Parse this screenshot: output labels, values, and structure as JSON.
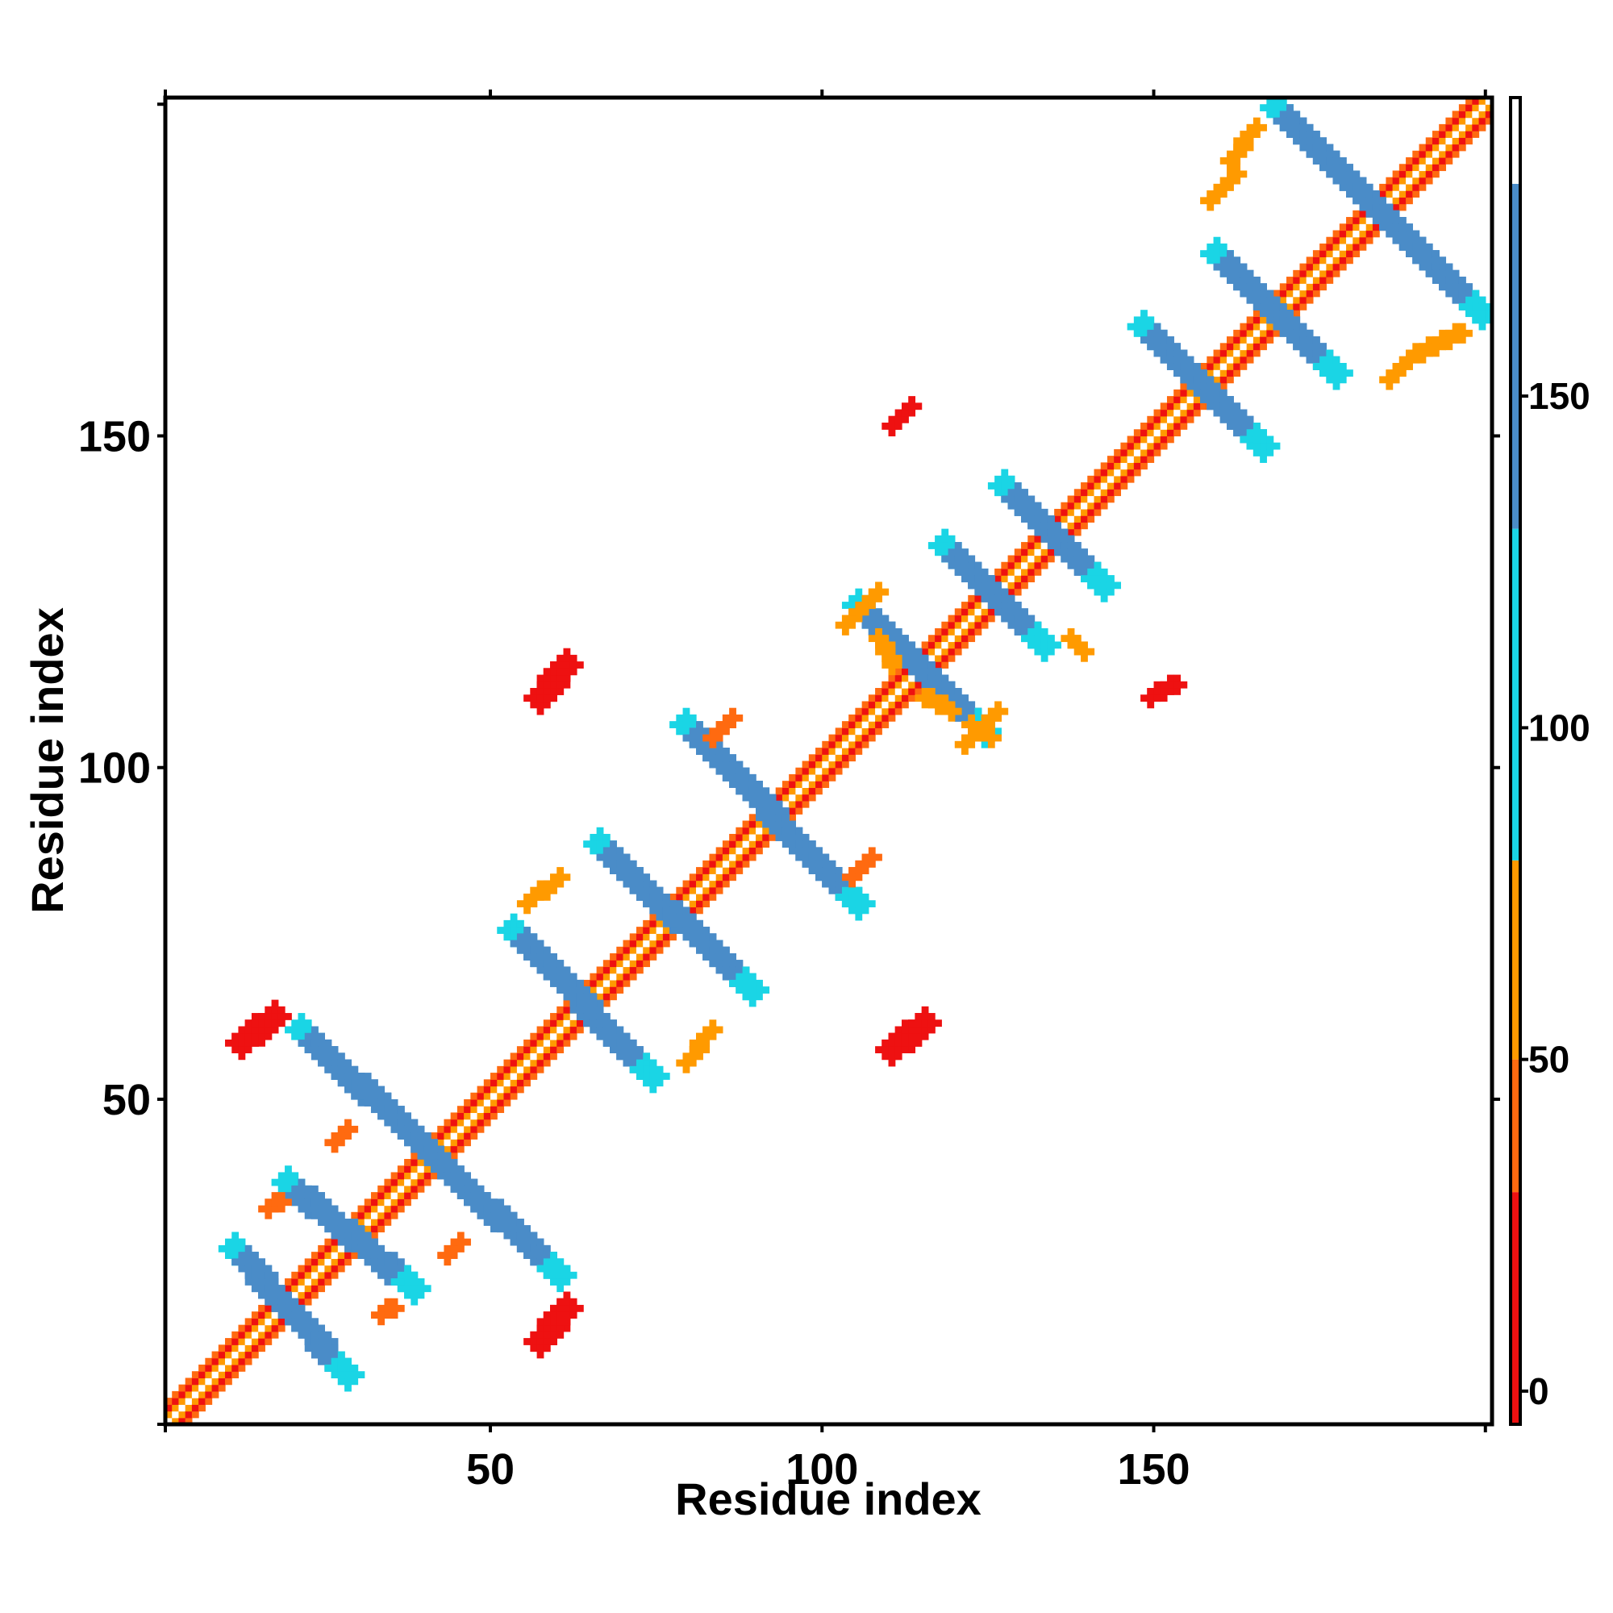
{
  "chart_data": {
    "type": "heatmap",
    "title": "",
    "xlabel": "Residue index",
    "ylabel": "Residue index",
    "xlim": [
      1,
      201
    ],
    "ylim": [
      1,
      201
    ],
    "x_ticks": [
      50,
      100,
      150
    ],
    "y_ticks": [
      50,
      100,
      150
    ],
    "grid": false,
    "colorbar": {
      "placement": "right",
      "range": [
        -5,
        195
      ],
      "ticks": [
        0,
        50,
        100,
        150
      ],
      "bands": [
        {
          "from": -5,
          "to": 30,
          "color": "#ee1111"
        },
        {
          "from": 30,
          "to": 50,
          "color": "#ff6a10"
        },
        {
          "from": 50,
          "to": 80,
          "color": "#ff9a00"
        },
        {
          "from": 80,
          "to": 130,
          "color": "#1ad5e5"
        },
        {
          "from": 130,
          "to": 182,
          "color": "#4a8cc8"
        },
        {
          "from": 182,
          "to": 195,
          "color": "#ffffff"
        }
      ]
    },
    "diagonal": {
      "from": 1,
      "to": 201
    },
    "features": [
      {
        "kind": "strand_pair",
        "from": [
          11,
          27
        ],
        "to": [
          28,
          8
        ],
        "width": 2.2,
        "color": "#4a8cc8"
      },
      {
        "kind": "strand_pair",
        "from": [
          19,
          37
        ],
        "to": [
          38,
          21
        ],
        "width": 2.2,
        "color": "#4a8cc8"
      },
      {
        "kind": "strand_pair",
        "from": [
          21,
          60
        ],
        "to": [
          60,
          23
        ],
        "width": 2.2,
        "color": "#4a8cc8"
      },
      {
        "kind": "strand_pair",
        "from": [
          53,
          75
        ],
        "to": [
          74,
          53
        ],
        "width": 2.2,
        "color": "#4a8cc8"
      },
      {
        "kind": "strand_pair",
        "from": [
          66,
          88
        ],
        "to": [
          89,
          66
        ],
        "width": 2.2,
        "color": "#4a8cc8"
      },
      {
        "kind": "strand_pair",
        "from": [
          79,
          106
        ],
        "to": [
          105,
          79
        ],
        "width": 2.2,
        "color": "#4a8cc8"
      },
      {
        "kind": "strand_pair",
        "from": [
          105,
          124
        ],
        "to": [
          124,
          105
        ],
        "width": 2.2,
        "color": "#4a8cc8"
      },
      {
        "kind": "strand_pair",
        "from": [
          118,
          133
        ],
        "to": [
          133,
          118
        ],
        "width": 2.2,
        "color": "#4a8cc8"
      },
      {
        "kind": "strand_pair",
        "from": [
          127,
          142
        ],
        "to": [
          142,
          127
        ],
        "width": 2.2,
        "color": "#4a8cc8"
      },
      {
        "kind": "strand_pair",
        "from": [
          148,
          166
        ],
        "to": [
          166,
          148
        ],
        "width": 2.2,
        "color": "#4a8cc8"
      },
      {
        "kind": "strand_pair",
        "from": [
          159,
          177
        ],
        "to": [
          177,
          159
        ],
        "width": 2.2,
        "color": "#4a8cc8"
      },
      {
        "kind": "strand_pair",
        "from": [
          168,
          199
        ],
        "to": [
          199,
          168
        ],
        "width": 2.2,
        "color": "#4a8cc8"
      },
      {
        "kind": "blob",
        "from": [
          12,
          58
        ],
        "to": [
          17,
          62
        ],
        "width": 1.8,
        "color": "#ee1111"
      },
      {
        "kind": "blob",
        "from": [
          57,
          110
        ],
        "to": [
          61,
          115
        ],
        "width": 1.8,
        "color": "#ee1111"
      },
      {
        "kind": "blob",
        "from": [
          57,
          13
        ],
        "to": [
          61,
          18
        ],
        "width": 1.8,
        "color": "#ee1111"
      },
      {
        "kind": "blob",
        "from": [
          110,
          57
        ],
        "to": [
          115,
          61
        ],
        "width": 1.8,
        "color": "#ee1111"
      },
      {
        "kind": "blob",
        "from": [
          110,
          151
        ],
        "to": [
          113,
          154
        ],
        "width": 1.2,
        "color": "#ee1111"
      },
      {
        "kind": "blob",
        "from": [
          149,
          110
        ],
        "to": [
          153,
          112
        ],
        "width": 1.2,
        "color": "#ee1111"
      },
      {
        "kind": "blob",
        "from": [
          43,
          26
        ],
        "to": [
          45,
          28
        ],
        "width": 1.0,
        "color": "#ff6a10"
      },
      {
        "kind": "blob",
        "from": [
          26,
          43
        ],
        "to": [
          28,
          45
        ],
        "width": 1.0,
        "color": "#ff6a10"
      },
      {
        "kind": "blob",
        "from": [
          16,
          33
        ],
        "to": [
          18,
          34
        ],
        "width": 1.0,
        "color": "#ff6a10"
      },
      {
        "kind": "blob",
        "from": [
          33,
          17
        ],
        "to": [
          35,
          18
        ],
        "width": 1.0,
        "color": "#ff6a10"
      },
      {
        "kind": "blob",
        "from": [
          55,
          79
        ],
        "to": [
          60,
          83
        ],
        "width": 1.0,
        "color": "#ff9a00"
      },
      {
        "kind": "blob",
        "from": [
          79,
          55
        ],
        "to": [
          83,
          60
        ],
        "width": 1.0,
        "color": "#ff9a00"
      },
      {
        "kind": "blob",
        "from": [
          103,
          121
        ],
        "to": [
          108,
          126
        ],
        "width": 1.0,
        "color": "#ff9a00"
      },
      {
        "kind": "blob",
        "from": [
          121,
          103
        ],
        "to": [
          126,
          108
        ],
        "width": 1.0,
        "color": "#ff9a00"
      },
      {
        "kind": "blob",
        "from": [
          158,
          185
        ],
        "to": [
          162,
          189
        ],
        "width": 1.0,
        "color": "#ff9a00"
      },
      {
        "kind": "blob",
        "from": [
          185,
          158
        ],
        "to": [
          189,
          162
        ],
        "width": 1.0,
        "color": "#ff9a00"
      },
      {
        "kind": "blob",
        "from": [
          161,
          191
        ],
        "to": [
          165,
          196
        ],
        "width": 1.0,
        "color": "#ff9a00"
      },
      {
        "kind": "blob",
        "from": [
          190,
          162
        ],
        "to": [
          196,
          165
        ],
        "width": 1.0,
        "color": "#ff9a00"
      },
      {
        "kind": "blob",
        "from": [
          115,
          110
        ],
        "to": [
          119,
          108
        ],
        "width": 1.0,
        "color": "#ff9a00"
      },
      {
        "kind": "blob",
        "from": [
          110,
          115
        ],
        "to": [
          108,
          119
        ],
        "width": 1.0,
        "color": "#ff9a00"
      },
      {
        "kind": "blob",
        "from": [
          104,
          83
        ],
        "to": [
          107,
          86
        ],
        "width": 1.0,
        "color": "#ff6a10"
      },
      {
        "kind": "blob",
        "from": [
          83,
          104
        ],
        "to": [
          86,
          107
        ],
        "width": 1.0,
        "color": "#ff6a10"
      },
      {
        "kind": "blob",
        "from": [
          122,
          106
        ],
        "to": [
          125,
          104
        ],
        "width": 1.0,
        "color": "#ff9a00"
      },
      {
        "kind": "blob",
        "from": [
          137,
          119
        ],
        "to": [
          139,
          117
        ],
        "width": 1.0,
        "color": "#ff9a00"
      }
    ]
  }
}
